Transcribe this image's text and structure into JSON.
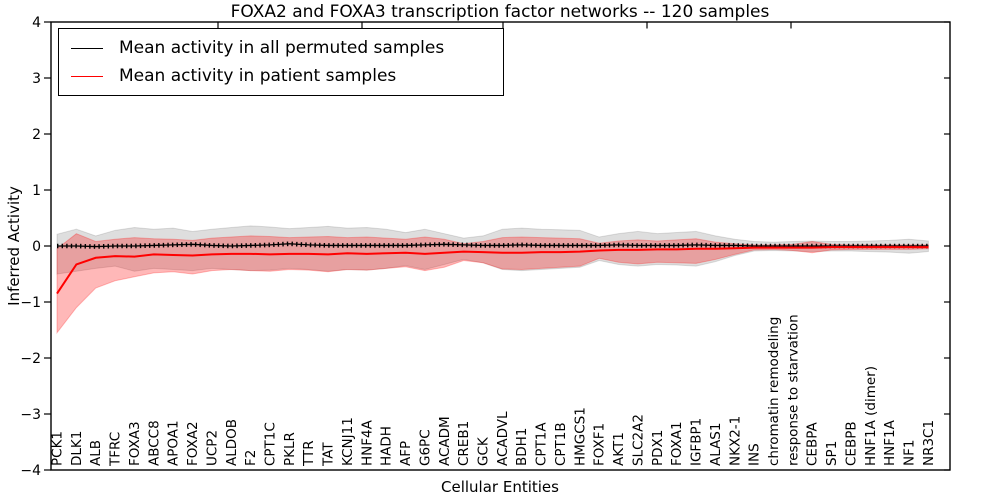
{
  "legend": {
    "items": [
      {
        "label": "Mean activity in all permuted samples",
        "color": "#000000"
      },
      {
        "label": "Mean activity in patient samples",
        "color": "#ff0000"
      }
    ]
  },
  "chart_data": {
    "type": "line",
    "title": "FOXA2 and FOXA3 transcription factor networks -- 120 samples",
    "xlabel": "Cellular Entities",
    "ylabel": "Inferred Activity",
    "ylim": [
      -4,
      4
    ],
    "ytick_labels": [
      "4",
      "3",
      "2",
      "1",
      "0",
      "−1",
      "−2",
      "−3",
      "−4"
    ],
    "ytick_values": [
      4,
      3,
      2,
      1,
      0,
      -1,
      -2,
      -3,
      -4
    ],
    "grid": false,
    "legend_position": "upper left",
    "categories": [
      "PCK1",
      "DLK1",
      "ALB",
      "TFRC",
      "FOXA3",
      "ABCC8",
      "APOA1",
      "FOXA2",
      "UCP2",
      "ALDOB",
      "F2",
      "CPT1C",
      "PKLR",
      "TTR",
      "TAT",
      "KCNJ11",
      "HNF4A",
      "HADH",
      "AFP",
      "G6PC",
      "ACADM",
      "CREB1",
      "GCK",
      "ACADVL",
      "BDH1",
      "CPT1A",
      "CPT1B",
      "HMGCS1",
      "FOXF1",
      "AKT1",
      "SLC2A2",
      "PDX1",
      "FOXA1",
      "IGFBP1",
      "ALAS1",
      "NKX2-1",
      "INS",
      "chromatin remodeling",
      "response to starvation",
      "CEBPA",
      "SP1",
      "CEBPB",
      "HNF1A (dimer)",
      "HNF1A",
      "NF1",
      "NR3C1"
    ],
    "series": [
      {
        "name": "Mean activity in all permuted samples",
        "color": "#000000",
        "band_color": "#000000",
        "band_opacity": 0.13,
        "values": [
          0.0,
          0.0,
          -0.01,
          0.0,
          0.0,
          0.01,
          0.02,
          0.03,
          0.01,
          0.0,
          0.01,
          0.02,
          0.04,
          0.02,
          0.01,
          0.01,
          0.01,
          0.01,
          0.01,
          0.02,
          0.03,
          0.02,
          0.01,
          0.01,
          0.02,
          0.01,
          0.01,
          0.01,
          0.01,
          0.02,
          0.01,
          0.01,
          0.01,
          0.02,
          0.01,
          0.01,
          0.0,
          0.0,
          0.0,
          0.0,
          0.0,
          0.0,
          0.0,
          0.0,
          0.0,
          0.0
        ],
        "band_upper": [
          0.21,
          0.3,
          0.18,
          0.28,
          0.33,
          0.3,
          0.32,
          0.26,
          0.3,
          0.33,
          0.36,
          0.34,
          0.31,
          0.33,
          0.35,
          0.32,
          0.33,
          0.3,
          0.24,
          0.3,
          0.22,
          0.14,
          0.18,
          0.3,
          0.32,
          0.3,
          0.29,
          0.28,
          0.16,
          0.22,
          0.26,
          0.22,
          0.24,
          0.26,
          0.18,
          0.12,
          0.08,
          0.07,
          0.08,
          0.09,
          0.08,
          0.08,
          0.09,
          0.1,
          0.12,
          0.09
        ],
        "band_lower": [
          -0.5,
          -0.45,
          -0.4,
          -0.36,
          -0.45,
          -0.4,
          -0.42,
          -0.44,
          -0.4,
          -0.42,
          -0.44,
          -0.43,
          -0.4,
          -0.42,
          -0.45,
          -0.42,
          -0.43,
          -0.4,
          -0.35,
          -0.42,
          -0.33,
          -0.24,
          -0.3,
          -0.42,
          -0.44,
          -0.42,
          -0.4,
          -0.38,
          -0.26,
          -0.33,
          -0.36,
          -0.33,
          -0.34,
          -0.36,
          -0.28,
          -0.17,
          -0.09,
          -0.08,
          -0.09,
          -0.1,
          -0.09,
          -0.09,
          -0.1,
          -0.11,
          -0.13,
          -0.1
        ]
      },
      {
        "name": "Mean activity in patient samples",
        "color": "#ff0000",
        "band_color": "#ff0000",
        "band_opacity": 0.28,
        "values": [
          -0.85,
          -0.33,
          -0.21,
          -0.18,
          -0.19,
          -0.15,
          -0.16,
          -0.17,
          -0.15,
          -0.14,
          -0.14,
          -0.15,
          -0.14,
          -0.14,
          -0.15,
          -0.13,
          -0.14,
          -0.13,
          -0.12,
          -0.14,
          -0.12,
          -0.1,
          -0.11,
          -0.12,
          -0.12,
          -0.11,
          -0.11,
          -0.1,
          -0.08,
          -0.07,
          -0.07,
          -0.06,
          -0.06,
          -0.05,
          -0.05,
          -0.04,
          -0.03,
          -0.03,
          -0.03,
          -0.03,
          -0.02,
          -0.02,
          -0.02,
          -0.02,
          -0.02,
          -0.02
        ],
        "band_upper": [
          -0.05,
          0.22,
          0.08,
          0.12,
          0.15,
          0.13,
          0.12,
          0.1,
          0.14,
          0.16,
          0.18,
          0.17,
          0.15,
          0.16,
          0.17,
          0.15,
          0.16,
          0.14,
          0.12,
          0.16,
          0.12,
          0.04,
          0.08,
          0.15,
          0.16,
          0.15,
          0.14,
          0.13,
          0.05,
          0.09,
          0.11,
          0.09,
          0.11,
          0.13,
          0.07,
          0.04,
          0.02,
          0.02,
          0.03,
          0.08,
          0.03,
          0.02,
          0.02,
          0.02,
          0.02,
          0.02
        ],
        "band_lower": [
          -1.55,
          -1.1,
          -0.75,
          -0.62,
          -0.55,
          -0.48,
          -0.46,
          -0.5,
          -0.44,
          -0.42,
          -0.44,
          -0.45,
          -0.42,
          -0.43,
          -0.46,
          -0.42,
          -0.43,
          -0.4,
          -0.37,
          -0.44,
          -0.38,
          -0.26,
          -0.3,
          -0.41,
          -0.42,
          -0.4,
          -0.38,
          -0.36,
          -0.22,
          -0.29,
          -0.32,
          -0.29,
          -0.3,
          -0.31,
          -0.24,
          -0.15,
          -0.07,
          -0.06,
          -0.08,
          -0.12,
          -0.07,
          -0.06,
          -0.06,
          -0.06,
          -0.06,
          -0.05
        ]
      }
    ]
  }
}
